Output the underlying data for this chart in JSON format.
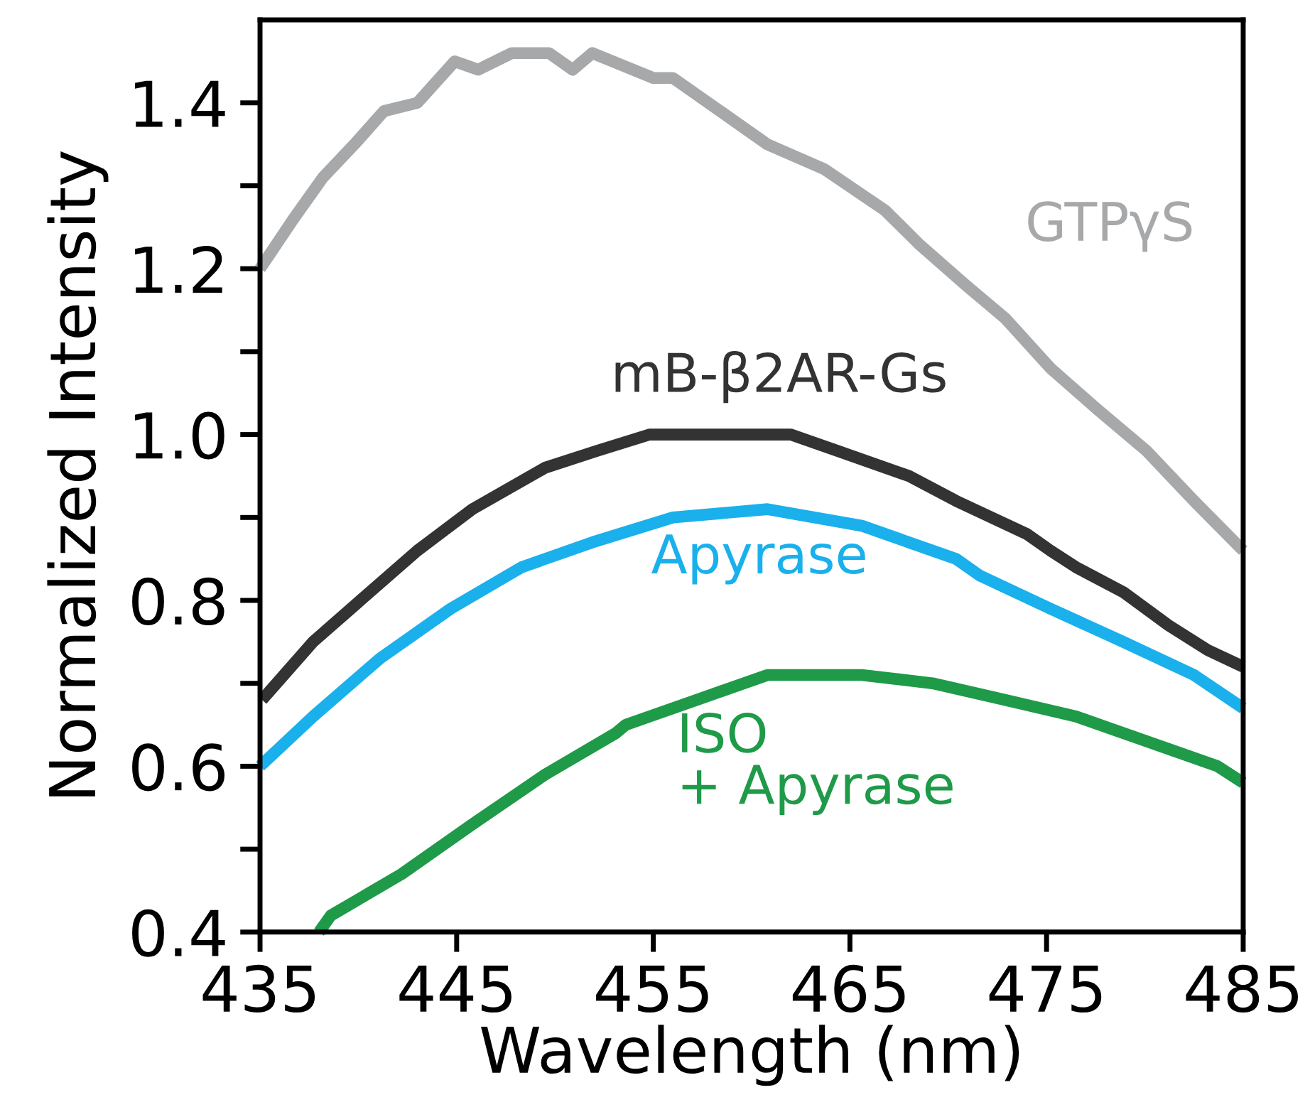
{
  "chart_data": {
    "type": "line",
    "xlabel": "Wavelength (nm)",
    "ylabel": "Normalized Intensity",
    "xlim": [
      435,
      485
    ],
    "xticks": [
      435,
      445,
      455,
      465,
      475,
      485
    ],
    "ylim": [
      0.4,
      1.5
    ],
    "yticks": [
      0.4,
      {
        "value": 0.5,
        "label": null
      },
      0.6,
      {
        "value": 0.7,
        "label": null
      },
      0.8,
      {
        "value": 0.9,
        "label": null
      },
      {
        "value": 1.0,
        "label": "1.0"
      },
      {
        "value": 1.1,
        "label": null
      },
      1.2,
      {
        "value": 1.3,
        "label": null
      },
      1.4
    ],
    "grid": false,
    "legend": false,
    "marker": "none",
    "line_style": "solid",
    "series": [
      {
        "name": "GTPγS",
        "color": "#a7a8aa",
        "x": [
          435.0,
          436.7,
          438.2,
          439.8,
          441.3,
          443.0,
          444.9,
          446.1,
          447.8,
          449.7,
          450.9,
          451.9,
          455.0,
          456.0,
          458.4,
          460.8,
          463.7,
          466.8,
          468.5,
          470.9,
          472.9,
          475.2,
          477.6,
          480.1,
          482.5,
          485.0
        ],
        "values": [
          1.2,
          1.26,
          1.31,
          1.35,
          1.39,
          1.4,
          1.45,
          1.44,
          1.46,
          1.46,
          1.44,
          1.46,
          1.43,
          1.43,
          1.39,
          1.35,
          1.32,
          1.27,
          1.23,
          1.18,
          1.14,
          1.08,
          1.03,
          0.98,
          0.92,
          0.86
        ]
      },
      {
        "name": "mB-β2AR-Gs",
        "color": "#333333",
        "x": [
          435.1,
          437.7,
          440.1,
          443.0,
          445.8,
          449.5,
          452.1,
          454.8,
          456.0,
          458.4,
          462.0,
          464.4,
          468.0,
          470.4,
          474.0,
          475.2,
          476.5,
          478.9,
          481.2,
          483.2,
          485.0
        ],
        "values": [
          0.68,
          0.75,
          0.8,
          0.86,
          0.91,
          0.96,
          0.98,
          1.0,
          1.0,
          1.0,
          1.0,
          0.98,
          0.95,
          0.92,
          0.88,
          0.86,
          0.84,
          0.81,
          0.77,
          0.74,
          0.72
        ]
      },
      {
        "name": "Apyrase",
        "color": "#1ab0ec",
        "x": [
          435.0,
          437.7,
          441.1,
          444.7,
          448.3,
          451.9,
          456.0,
          460.8,
          465.6,
          468.0,
          470.4,
          471.6,
          475.2,
          478.9,
          482.5,
          485.0
        ],
        "values": [
          0.6,
          0.66,
          0.73,
          0.79,
          0.84,
          0.87,
          0.9,
          0.91,
          0.89,
          0.87,
          0.85,
          0.83,
          0.79,
          0.75,
          0.71,
          0.67
        ]
      },
      {
        "name": "ISO\n+ Apyrase",
        "color": "#1f9a48",
        "x": [
          438.0,
          438.6,
          442.2,
          445.8,
          449.5,
          453.1,
          453.6,
          457.2,
          460.8,
          465.6,
          469.2,
          472.9,
          476.5,
          480.1,
          483.7,
          485.0
        ],
        "values": [
          0.4,
          0.42,
          0.47,
          0.53,
          0.59,
          0.64,
          0.65,
          0.68,
          0.71,
          0.71,
          0.7,
          0.68,
          0.66,
          0.63,
          0.6,
          0.58
        ]
      }
    ]
  }
}
